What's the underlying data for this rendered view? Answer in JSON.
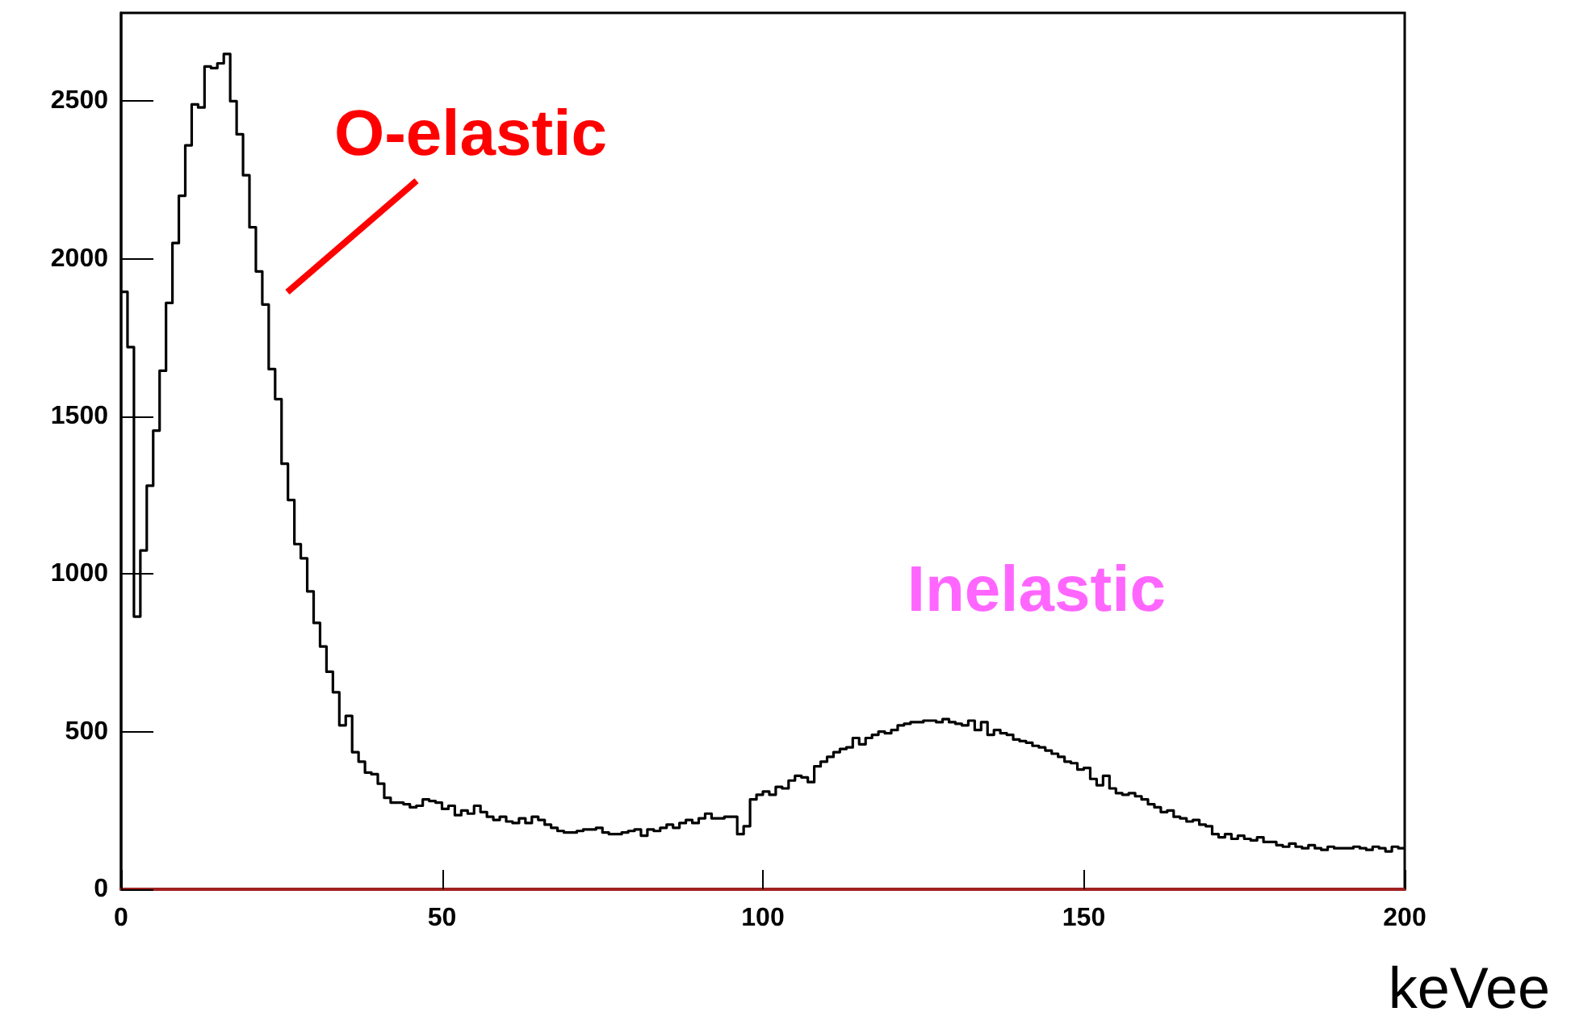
{
  "chart_data": {
    "type": "histogram",
    "xlabel": "keVee",
    "color": "#000000",
    "bins": [
      0,
      1,
      2,
      3,
      4,
      5,
      6,
      7,
      8,
      9,
      10,
      11,
      12,
      13,
      14,
      15,
      16,
      17,
      18,
      19,
      20,
      21,
      22,
      23,
      24,
      25,
      26,
      27,
      28,
      29,
      30,
      31,
      32,
      33,
      34,
      35,
      36,
      37,
      38,
      39,
      40,
      41,
      42,
      43,
      44,
      45,
      46,
      47,
      48,
      49,
      50,
      51,
      52,
      53,
      54,
      55,
      56,
      57,
      58,
      59,
      60,
      61,
      62,
      63,
      64,
      65,
      66,
      67,
      68,
      69,
      70,
      71,
      72,
      73,
      74,
      75,
      76,
      77,
      78,
      79,
      80,
      81,
      82,
      83,
      84,
      85,
      86,
      87,
      88,
      89,
      90,
      91,
      92,
      93,
      94,
      95,
      96,
      97,
      98,
      99,
      100,
      101,
      102,
      103,
      104,
      105,
      106,
      107,
      108,
      109,
      110,
      111,
      112,
      113,
      114,
      115,
      116,
      117,
      118,
      119,
      120,
      121,
      122,
      123,
      124,
      125,
      126,
      127,
      128,
      129,
      130,
      131,
      132,
      133,
      134,
      135,
      136,
      137,
      138,
      139,
      140,
      141,
      142,
      143,
      144,
      145,
      146,
      147,
      148,
      149,
      150,
      151,
      152,
      153,
      154,
      155,
      156,
      157,
      158,
      159,
      160,
      161,
      162,
      163,
      164,
      165,
      166,
      167,
      168,
      169,
      170,
      171,
      172,
      173,
      174,
      175,
      176,
      177,
      178,
      179,
      180,
      181,
      182,
      183,
      184,
      185,
      186,
      187,
      188,
      189,
      190,
      191,
      192,
      193,
      194,
      195,
      196,
      197,
      198,
      199,
      200
    ],
    "values": [
      1895,
      1720,
      865,
      1075,
      1280,
      1455,
      1645,
      1860,
      2050,
      2200,
      2360,
      2490,
      2480,
      2610,
      2605,
      2620,
      2650,
      2500,
      2395,
      2265,
      2100,
      1960,
      1855,
      1650,
      1555,
      1350,
      1235,
      1095,
      1050,
      945,
      845,
      770,
      690,
      625,
      520,
      550,
      435,
      405,
      370,
      365,
      335,
      290,
      275,
      275,
      270,
      260,
      265,
      285,
      280,
      275,
      255,
      265,
      235,
      250,
      240,
      265,
      245,
      230,
      220,
      230,
      215,
      210,
      225,
      210,
      230,
      220,
      205,
      195,
      185,
      180,
      180,
      185,
      190,
      190,
      195,
      180,
      175,
      175,
      180,
      185,
      190,
      170,
      190,
      185,
      195,
      205,
      195,
      210,
      220,
      210,
      225,
      240,
      225,
      225,
      230,
      230,
      175,
      200,
      285,
      300,
      310,
      300,
      325,
      320,
      345,
      360,
      355,
      340,
      390,
      405,
      420,
      435,
      445,
      450,
      480,
      460,
      480,
      490,
      500,
      495,
      505,
      520,
      525,
      530,
      530,
      535,
      535,
      530,
      540,
      530,
      525,
      520,
      535,
      505,
      530,
      490,
      505,
      495,
      490,
      475,
      470,
      465,
      455,
      450,
      440,
      430,
      420,
      405,
      400,
      380,
      385,
      350,
      330,
      360,
      320,
      305,
      300,
      305,
      295,
      285,
      270,
      260,
      245,
      250,
      230,
      225,
      215,
      220,
      205,
      200,
      175,
      165,
      175,
      160,
      170,
      160,
      155,
      165,
      150,
      150,
      140,
      135,
      145,
      135,
      130,
      140,
      130,
      125,
      135,
      130,
      130,
      130,
      135,
      130,
      125,
      135,
      130,
      120,
      135,
      130
    ],
    "xlim": [
      0,
      200
    ],
    "xticks": [
      0,
      50,
      100,
      150,
      200
    ],
    "ylim": [
      0,
      2780
    ],
    "yticks": [
      0,
      500,
      1000,
      1500,
      2000,
      2500
    ],
    "grid": false,
    "annotations": [
      "O-elastic",
      {
        "text": "Inelastic",
        "x": 125,
        "y": 540
      }
    ]
  }
}
